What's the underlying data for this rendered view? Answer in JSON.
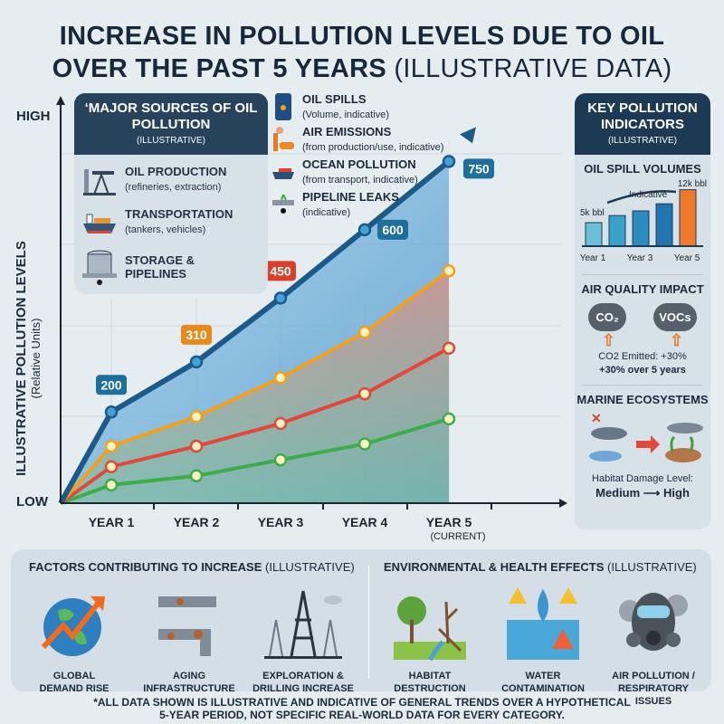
{
  "title": {
    "line1": "INCREASE IN POLLUTION LEVELS DUE TO OIL",
    "line2": "OVER THE PAST 5 YEARS",
    "line2_sub": "(ILLUSTRATIVE DATA)"
  },
  "chart_data": {
    "type": "line",
    "title": "Increase in Pollution Levels Due to Oil Over the Past 5 Years (Illustrative Data)",
    "ylabel": "ILLUSTRATIVE POLLUTION LEVELS",
    "ylabel_sub": "(Relative Units)",
    "y_high": "HIGH",
    "y_low": "LOW",
    "categories": [
      "YEAR 1",
      "YEAR 2",
      "YEAR 3",
      "YEAR 4",
      "YEAR 5"
    ],
    "x_sub": "(CURRENT)",
    "ylim": [
      0,
      850
    ],
    "series": [
      {
        "name": "Oil Spills (total)",
        "color": "#1c5a8a",
        "values": [
          200,
          310,
          450,
          600,
          750
        ],
        "labels": [
          "200",
          "310",
          "450",
          "600",
          "750"
        ],
        "label_colors": [
          "#1f6f9c",
          "#e8891c",
          "#d9402b",
          "#1f6f9c",
          "#1f6f9c"
        ]
      },
      {
        "name": "Air Emissions",
        "color": "#f2a020",
        "values": [
          125,
          190,
          275,
          375,
          510
        ]
      },
      {
        "name": "Ocean Pollution",
        "color": "#e0483a",
        "values": [
          80,
          125,
          175,
          240,
          340
        ]
      },
      {
        "name": "Pipeline Leaks",
        "color": "#3cad4a",
        "values": [
          40,
          60,
          95,
          130,
          185
        ]
      }
    ]
  },
  "sources": {
    "title": "‘MAJOR SOURCES OF OIL POLLUTION",
    "sub": "(ILLUSTRATIVE)",
    "items": [
      {
        "label": "OIL PRODUCTION",
        "desc": "(refineries, extraction)"
      },
      {
        "label": "TRANSPORTATION",
        "desc": "(tankers, vehicles)"
      },
      {
        "label": "STORAGE &",
        "label2": "PIPELINES"
      }
    ]
  },
  "legend": [
    {
      "label": "OIL SPILLS",
      "desc": "(Volume, indicative)"
    },
    {
      "label": "AIR EMISSIONS",
      "desc": "(from production/use, indicative)"
    },
    {
      "label": "OCEAN POLLUTION",
      "desc": "(from transport, indicative)"
    },
    {
      "label": "PIPELINE LEAKS",
      "desc": "(indicative)"
    }
  ],
  "indicators": {
    "title": "KEY POLLUTION INDICATORS",
    "sub": "(ILLUSTRATIVE)",
    "spill": {
      "title": "OIL SPILL VOLUMES",
      "start": "5k bbl",
      "end": "12k bbl",
      "trend": "Indicative",
      "values": [
        5,
        6.5,
        7.5,
        9,
        12
      ],
      "xlabels": [
        "Year 1",
        "Year 3",
        "Year 5"
      ]
    },
    "air": {
      "title": "AIR QUALITY IMPACT",
      "c1": "CO₂",
      "c2": "VOCs",
      "line1": "CO2 Emitted: +30%",
      "line2": "+30% over 5 years"
    },
    "marine": {
      "title": "MARINE ECOSYSTEMS",
      "line1": "Habitat Damage Level:",
      "line2": "Medium ⟶ High"
    }
  },
  "factors": {
    "title": "FACTORS CONTRIBUTING TO INCREASE",
    "sub": "(ILLUSTRATIVE)",
    "items": [
      [
        "GLOBAL",
        "DEMAND RISE"
      ],
      [
        "AGING",
        "INFRASTRUCTURE"
      ],
      [
        "EXPLORATION &",
        "DRILLING INCREASE"
      ]
    ]
  },
  "effects": {
    "title": "ENVIRONMENTAL & HEALTH EFFECTS",
    "sub": "(ILLUSTRATIVE)",
    "items": [
      [
        "HABITAT",
        "DESTRUCTION"
      ],
      [
        "WATER",
        "CONTAMINATION"
      ],
      [
        "AIR POLLUTION /",
        "RESPIRATORY ISSUES"
      ]
    ]
  },
  "footnote": {
    "line1": "*ALL DATA SHOWN IS ILLUSTRATIVE AND INDICATIVE OF GENERAL TRENDS OVER A HYPOTHETICAL",
    "line2": "5-YEAR PERIOD, NOT SPECIFIC REAL-WORLD DATA FOR EVERY CATEGORY."
  }
}
